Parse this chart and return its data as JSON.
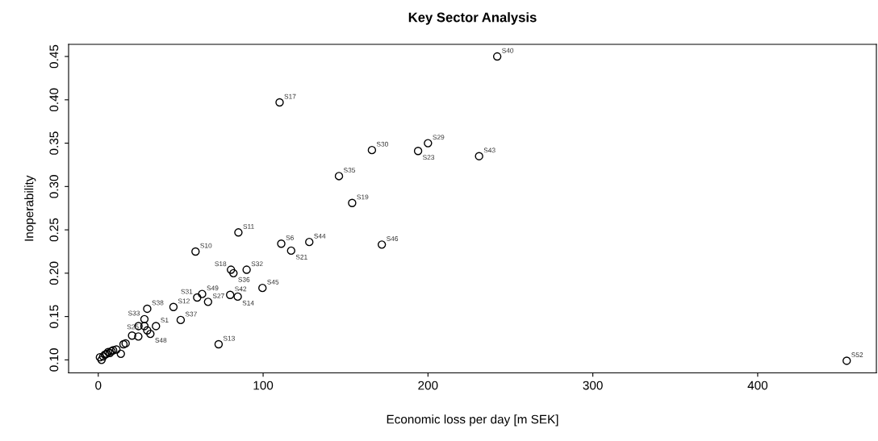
{
  "chart_data": {
    "type": "scatter",
    "title": "Key Sector Analysis",
    "xlabel": "Economic loss per day [m SEK]",
    "ylabel": "Inoperability",
    "xlim": [
      -18,
      472
    ],
    "ylim": [
      0.085,
      0.464
    ],
    "xticks": [
      0,
      100,
      200,
      300,
      400
    ],
    "yticks": [
      {
        "value": 0.1,
        "label": "0.10"
      },
      {
        "value": 0.15,
        "label": "0.15"
      },
      {
        "value": 0.2,
        "label": "0.20"
      },
      {
        "value": 0.25,
        "label": "0.25"
      },
      {
        "value": 0.3,
        "label": "0.30"
      },
      {
        "value": 0.35,
        "label": "0.35"
      },
      {
        "value": 0.4,
        "label": "0.40"
      },
      {
        "value": 0.45,
        "label": "0.45"
      }
    ],
    "grid": false,
    "legend": false,
    "marker": "circle",
    "series": [
      {
        "color": "#000000",
        "x": [
          242,
          454,
          110,
          166,
          200,
          194,
          231,
          146,
          154,
          85,
          111,
          117,
          128,
          172,
          59,
          80.5,
          82,
          90,
          99.6,
          80,
          84.6,
          63,
          60,
          66.6,
          45.6,
          29.7,
          50,
          73,
          28,
          24.4,
          28,
          35,
          29.7,
          31.6,
          24.3,
          20.5,
          15.3,
          16.6,
          13.7,
          2,
          1,
          3,
          5,
          6,
          7,
          9,
          11,
          4,
          8
        ],
        "values": [
          0.45,
          0.099,
          0.397,
          0.342,
          0.35,
          0.341,
          0.335,
          0.312,
          0.281,
          0.247,
          0.234,
          0.226,
          0.236,
          0.233,
          0.225,
          0.204,
          0.2,
          0.204,
          0.183,
          0.175,
          0.173,
          0.176,
          0.172,
          0.167,
          0.161,
          0.159,
          0.146,
          0.118,
          0.147,
          0.139,
          0.139,
          0.139,
          0.134,
          0.13,
          0.127,
          0.128,
          0.118,
          0.119,
          0.107,
          0.1,
          0.103,
          0.104,
          0.107,
          0.109,
          0.108,
          0.111,
          0.112,
          0.106,
          0.11
        ],
        "value_labels": [
          "S40",
          "S52",
          "S17",
          "S30",
          "S29",
          "S23",
          "S43",
          "S35",
          "S19",
          "S11",
          "S6",
          "S21",
          "S44",
          "S46",
          "S10",
          "S18",
          "S36",
          "S32",
          "S45",
          "S42",
          "S14",
          "S49",
          "S31",
          "S27",
          "S12",
          "S38",
          "S37",
          "S13",
          "S33",
          null,
          "S25",
          "S1",
          null,
          "S48",
          null,
          null,
          null,
          null,
          null,
          null,
          null,
          null,
          null,
          null,
          null,
          null,
          null,
          null,
          null
        ]
      }
    ]
  }
}
